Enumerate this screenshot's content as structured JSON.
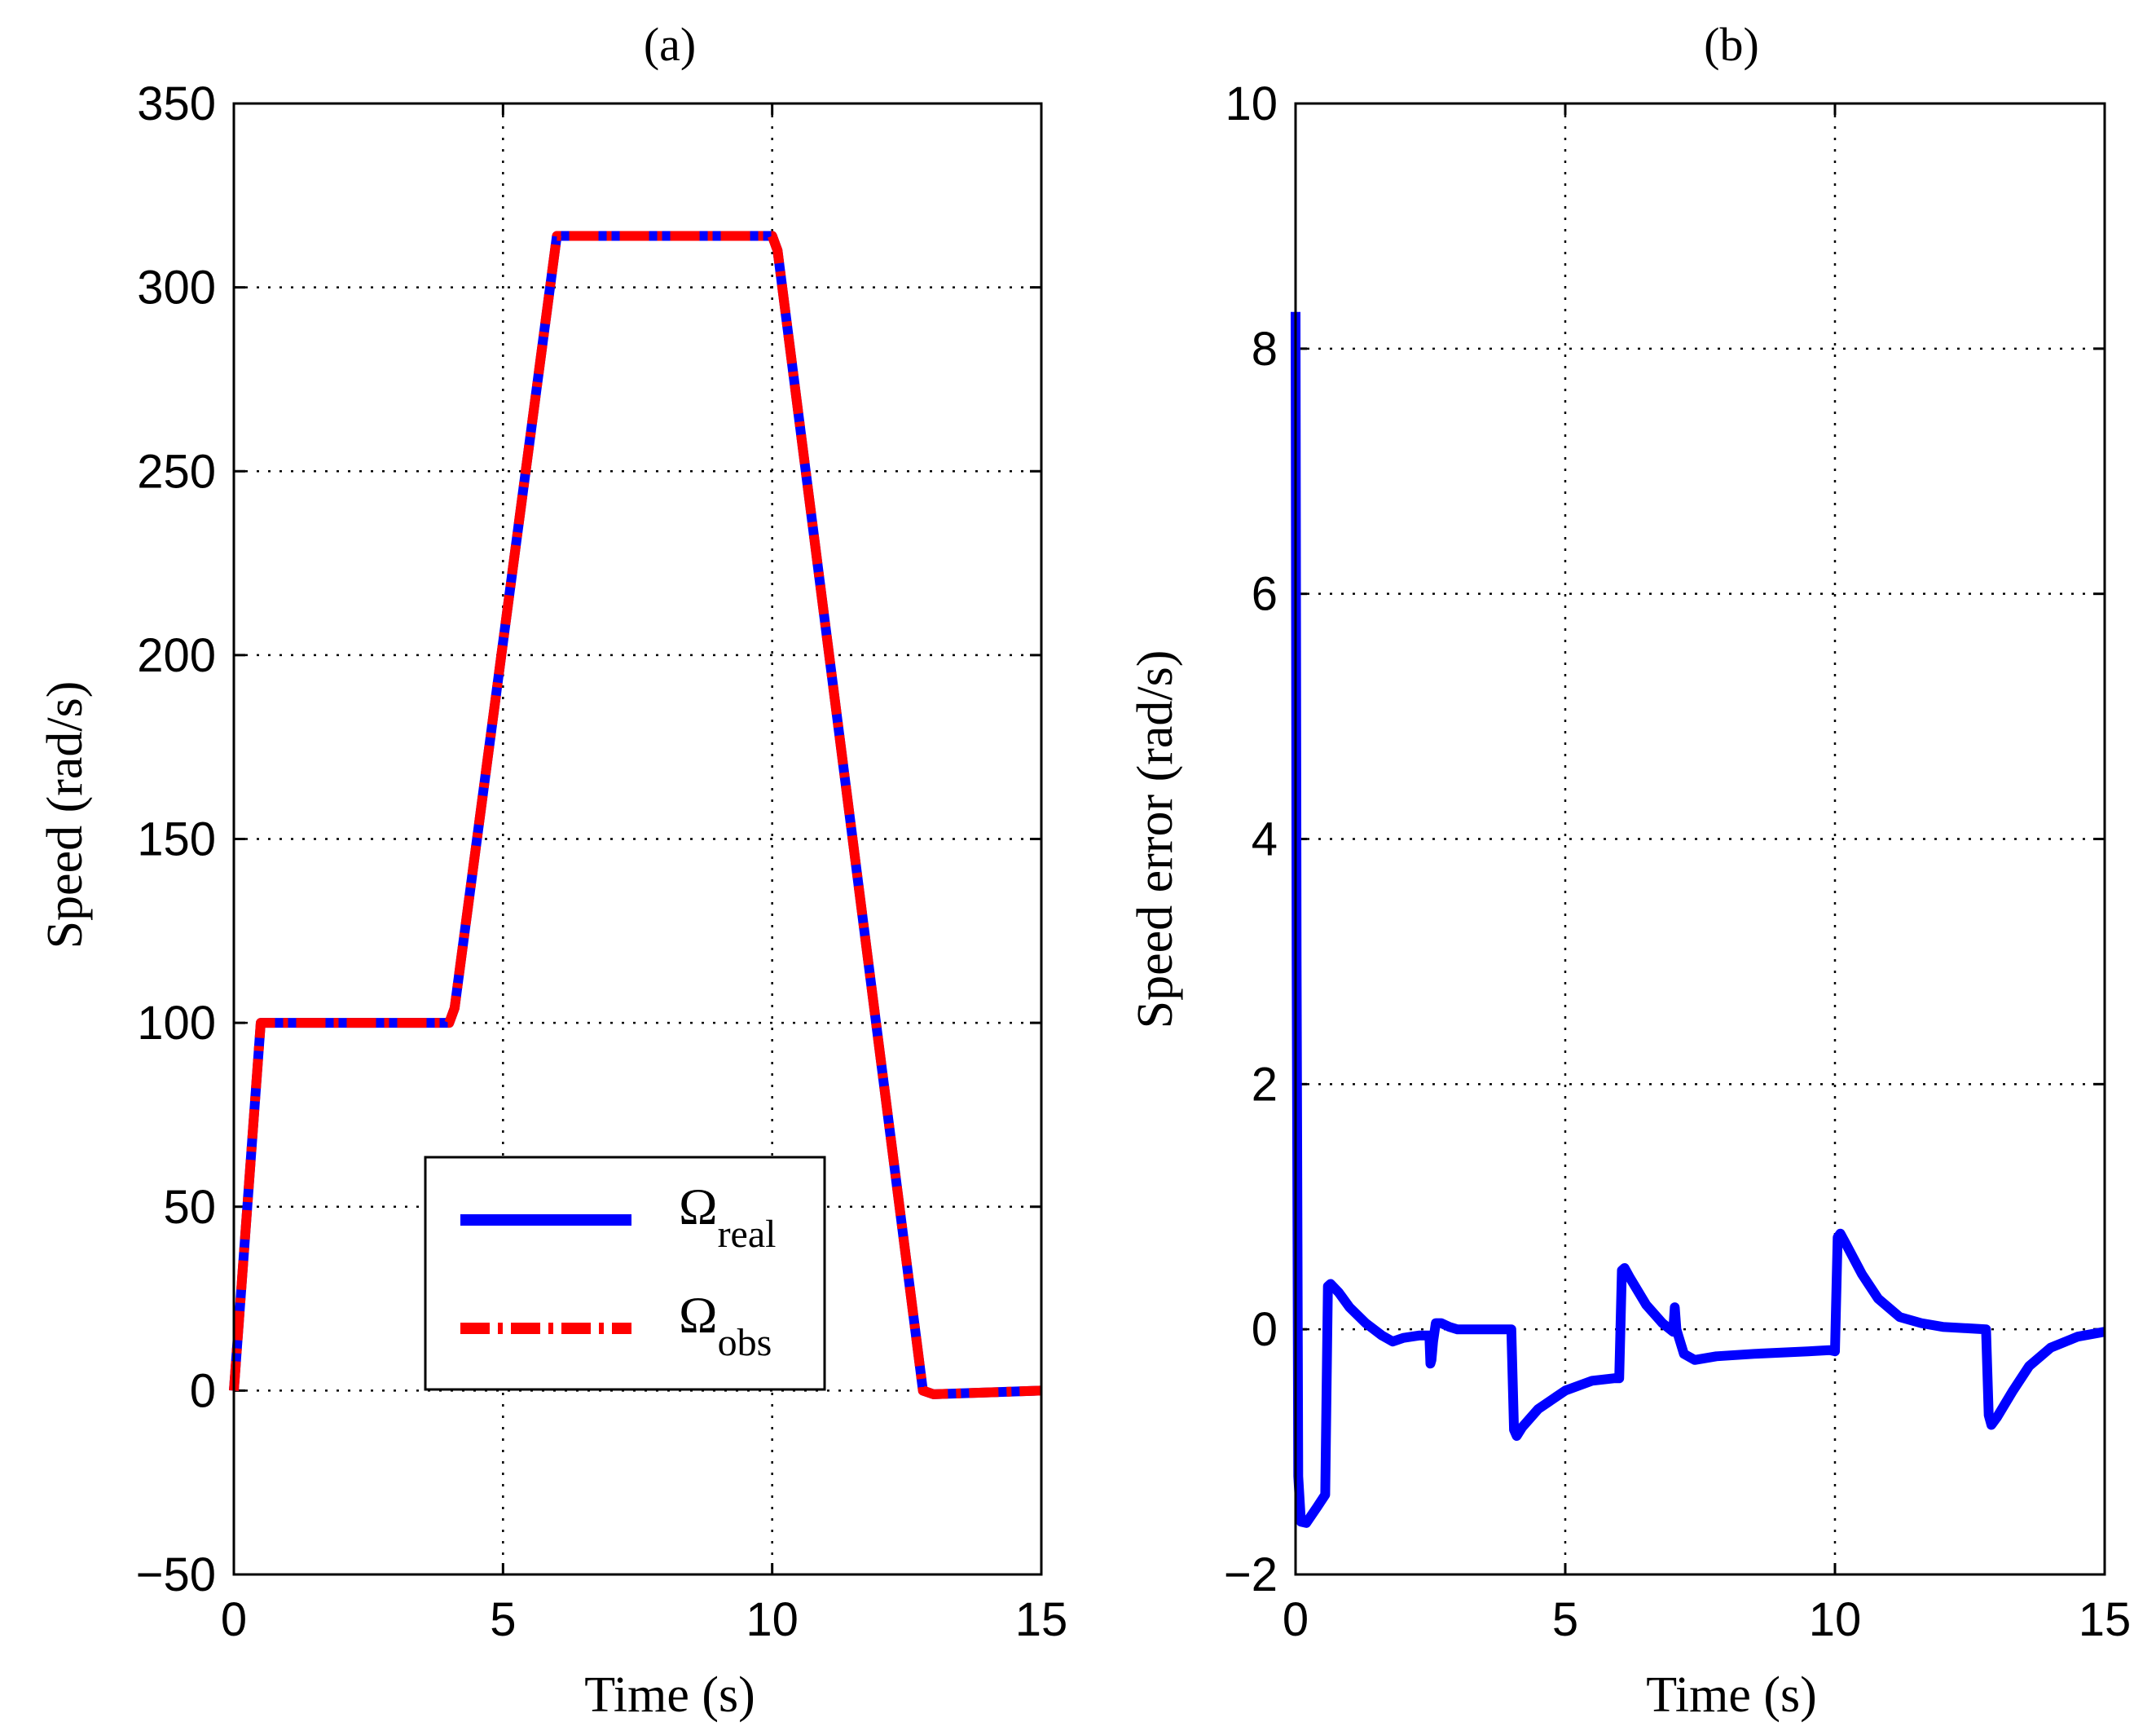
{
  "chart_data": [
    {
      "type": "line",
      "title": "(a)",
      "xlabel": "Time (s)",
      "ylabel": "Speed  (rad/s)",
      "xlim": [
        0,
        15
      ],
      "ylim": [
        -50,
        350
      ],
      "xticks": [
        0,
        5,
        10,
        15
      ],
      "yticks": [
        -50,
        0,
        50,
        100,
        150,
        200,
        250,
        300,
        350
      ],
      "xtick_labels": [
        "0",
        "5",
        "10",
        "15"
      ],
      "ytick_labels": [
        "−50",
        "0",
        "50",
        "100",
        "150",
        "200",
        "250",
        "300",
        "350"
      ],
      "grid": true,
      "legend_position": "lower-center",
      "series": [
        {
          "name": "real",
          "legend_symbol": "Ω",
          "legend_sub": "real",
          "color": "#0000ff",
          "style": "solid",
          "x": [
            0,
            0.5,
            4.0,
            4.1,
            6.0,
            10.0,
            10.1,
            12.8,
            13.0,
            15.0
          ],
          "y": [
            0,
            100,
            100,
            104,
            314,
            314,
            310,
            0,
            -1,
            0
          ]
        },
        {
          "name": "obs",
          "legend_symbol": "Ω",
          "legend_sub": "obs",
          "color": "#ff0000",
          "style": "dashdot",
          "x": [
            0,
            0.5,
            4.0,
            4.1,
            6.0,
            10.0,
            10.1,
            12.8,
            13.0,
            15.0
          ],
          "y": [
            0,
            100,
            100,
            104,
            314,
            314,
            310,
            0,
            -1,
            0
          ]
        }
      ]
    },
    {
      "type": "line",
      "title": "(b)",
      "xlabel": "Time (s)",
      "ylabel": "Speed error  (rad/s)",
      "xlim": [
        0,
        15
      ],
      "ylim": [
        -2,
        10
      ],
      "xticks": [
        0,
        5,
        10,
        15
      ],
      "yticks": [
        -2,
        0,
        2,
        4,
        6,
        8,
        10
      ],
      "xtick_labels": [
        "0",
        "5",
        "10",
        "15"
      ],
      "ytick_labels": [
        "−2",
        "0",
        "2",
        "4",
        "6",
        "8",
        "10"
      ],
      "grid": true,
      "series": [
        {
          "name": "Speed error",
          "color": "#0000ff",
          "style": "solid",
          "x": [
            0.0,
            0.02,
            0.05,
            0.1,
            0.2,
            0.4,
            0.55,
            0.6,
            0.65,
            0.8,
            1.0,
            1.3,
            1.6,
            1.8,
            2.0,
            2.3,
            2.48,
            2.5,
            2.52,
            2.55,
            2.6,
            2.7,
            2.85,
            3.0,
            3.5,
            4.0,
            4.05,
            4.1,
            4.2,
            4.5,
            5.0,
            5.5,
            5.9,
            6.0,
            6.05,
            6.1,
            6.2,
            6.5,
            6.8,
            7.0,
            7.03,
            7.06,
            7.2,
            7.4,
            7.8,
            8.5,
            9.5,
            9.9,
            10.0,
            10.05,
            10.1,
            10.2,
            10.5,
            10.8,
            11.2,
            11.6,
            12.0,
            12.4,
            12.8,
            12.85,
            12.9,
            13.0,
            13.3,
            13.6,
            14.0,
            14.5,
            15.0
          ],
          "y": [
            8.3,
            3.0,
            -1.2,
            -1.57,
            -1.58,
            -1.45,
            -1.35,
            0.35,
            0.37,
            0.3,
            0.18,
            0.05,
            -0.05,
            -0.1,
            -0.07,
            -0.05,
            -0.05,
            -0.28,
            -0.25,
            -0.1,
            0.05,
            0.05,
            0.02,
            0.0,
            0.0,
            0.0,
            -0.82,
            -0.87,
            -0.8,
            -0.65,
            -0.5,
            -0.42,
            -0.4,
            -0.4,
            0.48,
            0.5,
            0.42,
            0.2,
            0.05,
            -0.02,
            0.18,
            0.0,
            -0.2,
            -0.25,
            -0.22,
            -0.2,
            -0.18,
            -0.17,
            -0.18,
            0.75,
            0.78,
            0.7,
            0.45,
            0.25,
            0.1,
            0.05,
            0.02,
            0.01,
            0.0,
            -0.7,
            -0.78,
            -0.72,
            -0.5,
            -0.3,
            -0.15,
            -0.06,
            -0.02
          ]
        }
      ]
    }
  ]
}
